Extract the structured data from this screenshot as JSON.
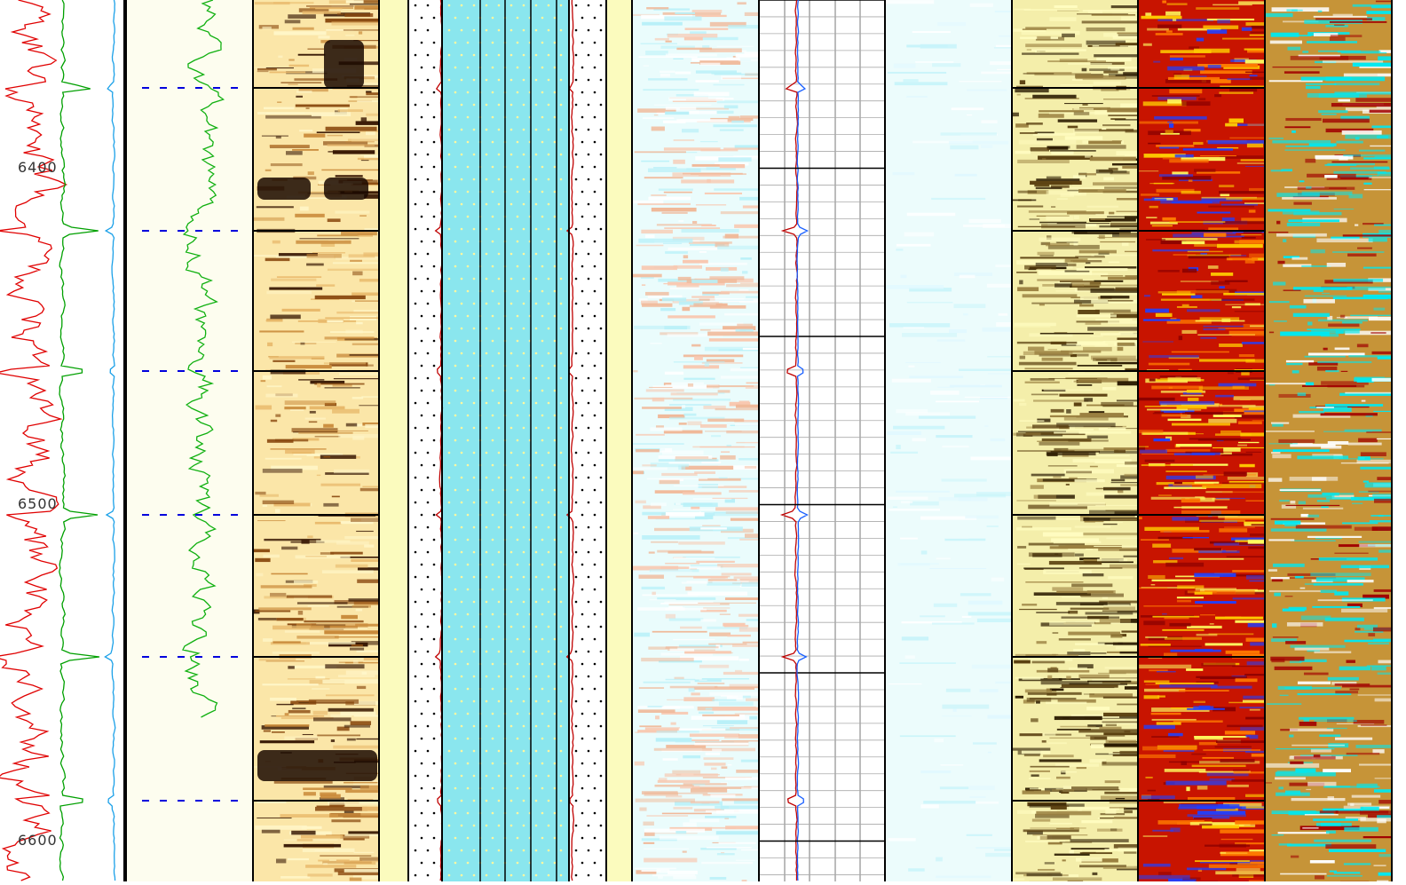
{
  "chart_data": {
    "type": "well-log",
    "ylim": [
      6350,
      6612
    ],
    "yticks": [
      6400,
      6500,
      6600
    ],
    "grid": true
  }
}
